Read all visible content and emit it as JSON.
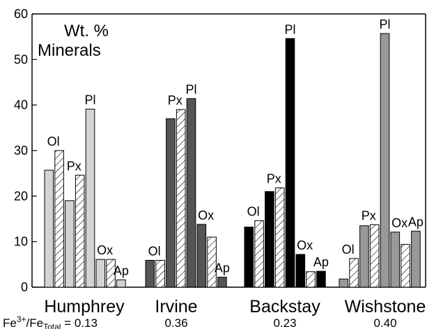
{
  "chart_data": {
    "type": "bar",
    "title": [
      "Wt. %",
      "Minerals"
    ],
    "ylim": [
      0,
      60
    ],
    "yticks": [
      0,
      10,
      20,
      30,
      40,
      50,
      60
    ],
    "ratio_prefix": "Fe3+/FeTotal =",
    "groups": [
      {
        "name": "Humphrey",
        "ratio": "0.13",
        "bars": [
          {
            "label": "Ol",
            "value": 25.7,
            "fill": "light-gray",
            "show_label": true
          },
          {
            "label": "Ol",
            "value": 30.0,
            "fill": "hatched",
            "show_label": false
          },
          {
            "label": "Px",
            "value": 19.0,
            "fill": "light-gray",
            "show_label": true
          },
          {
            "label": "Px",
            "value": 24.6,
            "fill": "hatched",
            "show_label": false
          },
          {
            "label": "Pl",
            "value": 39.1,
            "fill": "light-gray",
            "show_label": true
          },
          {
            "label": "Ox",
            "value": 6.1,
            "fill": "light-gray",
            "show_label": true
          },
          {
            "label": "Ox",
            "value": 6.1,
            "fill": "hatched",
            "show_label": false
          },
          {
            "label": "Ap",
            "value": 1.6,
            "fill": "light-gray",
            "show_label": true
          }
        ]
      },
      {
        "name": "Irvine",
        "ratio": "0.36",
        "bars": [
          {
            "label": "Ol",
            "value": 5.9,
            "fill": "dark-gray",
            "show_label": true
          },
          {
            "label": "Ol",
            "value": 5.9,
            "fill": "hatched",
            "show_label": false
          },
          {
            "label": "Px",
            "value": 37.0,
            "fill": "dark-gray",
            "show_label": true
          },
          {
            "label": "Px",
            "value": 39.0,
            "fill": "hatched",
            "show_label": false
          },
          {
            "label": "Pl",
            "value": 41.4,
            "fill": "dark-gray",
            "show_label": true
          },
          {
            "label": "Ox",
            "value": 13.8,
            "fill": "dark-gray",
            "show_label": true
          },
          {
            "label": "Ox",
            "value": 11.0,
            "fill": "hatched",
            "show_label": false
          },
          {
            "label": "Ap",
            "value": 2.2,
            "fill": "dark-gray",
            "show_label": true
          }
        ]
      },
      {
        "name": "Backstay",
        "ratio": "0.23",
        "bars": [
          {
            "label": "Ol",
            "value": 13.2,
            "fill": "black",
            "show_label": true
          },
          {
            "label": "Ol",
            "value": 14.6,
            "fill": "hatched",
            "show_label": false
          },
          {
            "label": "Px",
            "value": 21.0,
            "fill": "black",
            "show_label": true
          },
          {
            "label": "Px",
            "value": 21.8,
            "fill": "hatched",
            "show_label": false
          },
          {
            "label": "Pl",
            "value": 54.6,
            "fill": "black",
            "show_label": true
          },
          {
            "label": "Ox",
            "value": 7.2,
            "fill": "black",
            "show_label": true
          },
          {
            "label": "Ox",
            "value": 3.4,
            "fill": "hatched",
            "show_label": false
          },
          {
            "label": "Ap",
            "value": 3.5,
            "fill": "black",
            "show_label": true
          }
        ]
      },
      {
        "name": "Wishstone",
        "ratio": "0.40",
        "bars": [
          {
            "label": "Ol",
            "value": 1.8,
            "fill": "medium-gray",
            "show_label": true
          },
          {
            "label": "Ol",
            "value": 6.3,
            "fill": "hatched",
            "show_label": false
          },
          {
            "label": "Px",
            "value": 13.5,
            "fill": "medium-gray",
            "show_label": true
          },
          {
            "label": "Px",
            "value": 13.7,
            "fill": "hatched",
            "show_label": false
          },
          {
            "label": "Pl",
            "value": 55.7,
            "fill": "medium-gray",
            "show_label": true
          },
          {
            "label": "Ox",
            "value": 12.1,
            "fill": "medium-gray",
            "show_label": true
          },
          {
            "label": "Ox",
            "value": 9.4,
            "fill": "hatched",
            "show_label": false
          },
          {
            "label": "Ap",
            "value": 12.3,
            "fill": "medium-gray",
            "show_label": true
          }
        ]
      }
    ],
    "colors": {
      "light-gray": "#d3d3d3",
      "dark-gray": "#555555",
      "black": "#000000",
      "medium-gray": "#999999",
      "hatched": "#ffffff"
    }
  }
}
